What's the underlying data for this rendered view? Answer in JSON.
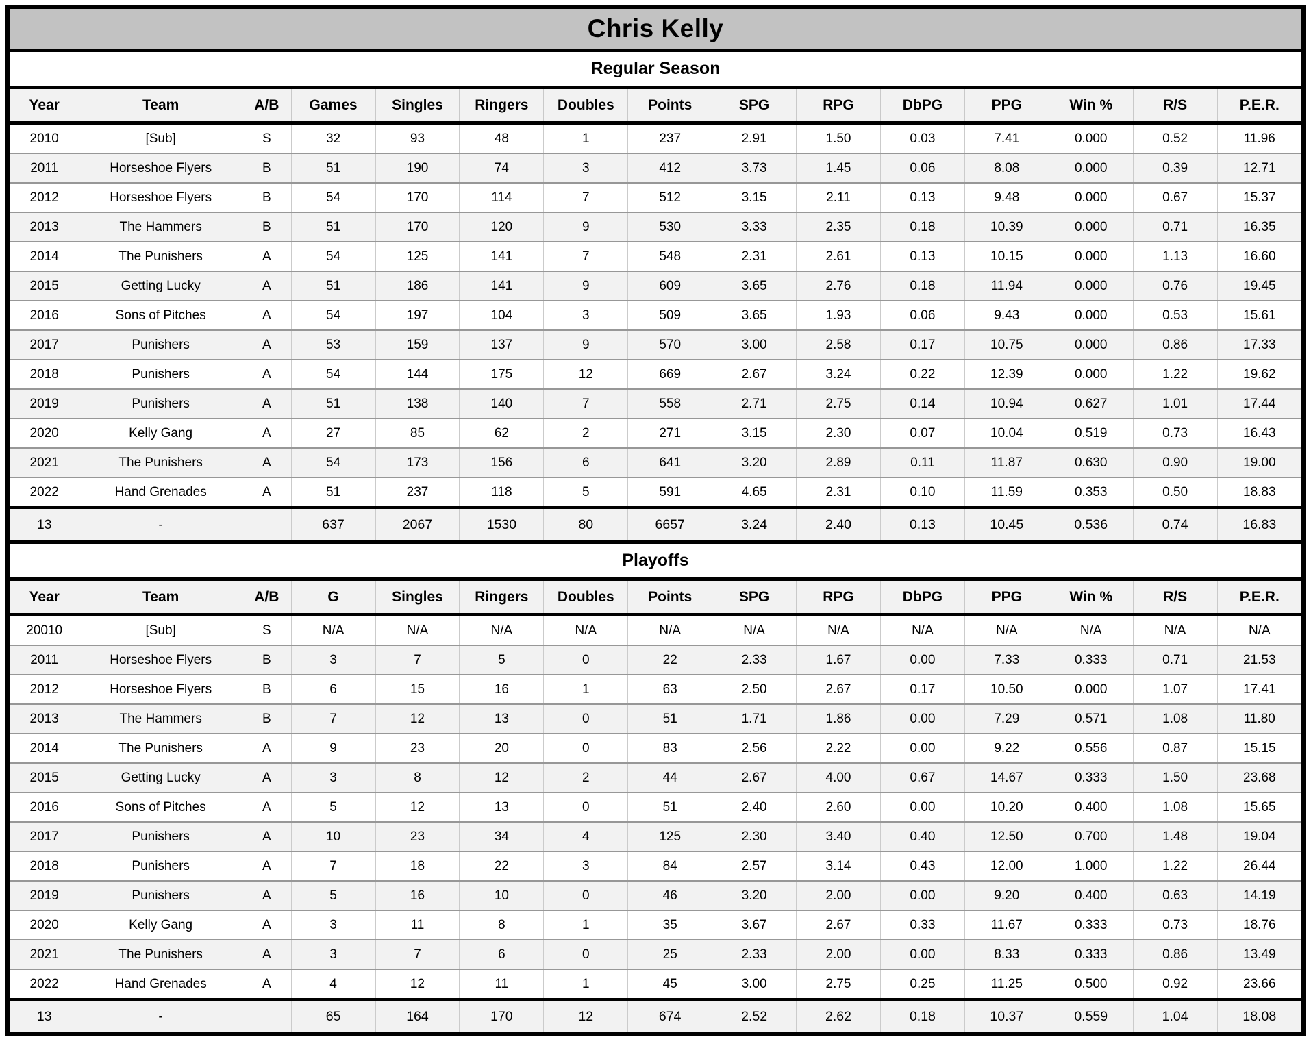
{
  "title": "Chris Kelly",
  "colors": {
    "title_bar_bg": "#c2c2c2",
    "header_row_bg": "#f2f2f2",
    "stripe_row_bg": "#f2f2f2",
    "border_black": "#000000",
    "grid_vertical": "#cbcbcb",
    "grid_horizontal": "#979797"
  },
  "sections": [
    {
      "label": "Regular Season",
      "columns": [
        "Year",
        "Team",
        "A/B",
        "Games",
        "Singles",
        "Ringers",
        "Doubles",
        "Points",
        "SPG",
        "RPG",
        "DbPG",
        "PPG",
        "Win %",
        "R/S",
        "P.E.R."
      ],
      "rows": [
        [
          "2010",
          "[Sub]",
          "S",
          "32",
          "93",
          "48",
          "1",
          "237",
          "2.91",
          "1.50",
          "0.03",
          "7.41",
          "0.000",
          "0.52",
          "11.96"
        ],
        [
          "2011",
          "Horseshoe Flyers",
          "B",
          "51",
          "190",
          "74",
          "3",
          "412",
          "3.73",
          "1.45",
          "0.06",
          "8.08",
          "0.000",
          "0.39",
          "12.71"
        ],
        [
          "2012",
          "Horseshoe Flyers",
          "B",
          "54",
          "170",
          "114",
          "7",
          "512",
          "3.15",
          "2.11",
          "0.13",
          "9.48",
          "0.000",
          "0.67",
          "15.37"
        ],
        [
          "2013",
          "The Hammers",
          "B",
          "51",
          "170",
          "120",
          "9",
          "530",
          "3.33",
          "2.35",
          "0.18",
          "10.39",
          "0.000",
          "0.71",
          "16.35"
        ],
        [
          "2014",
          "The Punishers",
          "A",
          "54",
          "125",
          "141",
          "7",
          "548",
          "2.31",
          "2.61",
          "0.13",
          "10.15",
          "0.000",
          "1.13",
          "16.60"
        ],
        [
          "2015",
          "Getting Lucky",
          "A",
          "51",
          "186",
          "141",
          "9",
          "609",
          "3.65",
          "2.76",
          "0.18",
          "11.94",
          "0.000",
          "0.76",
          "19.45"
        ],
        [
          "2016",
          "Sons of Pitches",
          "A",
          "54",
          "197",
          "104",
          "3",
          "509",
          "3.65",
          "1.93",
          "0.06",
          "9.43",
          "0.000",
          "0.53",
          "15.61"
        ],
        [
          "2017",
          "Punishers",
          "A",
          "53",
          "159",
          "137",
          "9",
          "570",
          "3.00",
          "2.58",
          "0.17",
          "10.75",
          "0.000",
          "0.86",
          "17.33"
        ],
        [
          "2018",
          "Punishers",
          "A",
          "54",
          "144",
          "175",
          "12",
          "669",
          "2.67",
          "3.24",
          "0.22",
          "12.39",
          "0.000",
          "1.22",
          "19.62"
        ],
        [
          "2019",
          "Punishers",
          "A",
          "51",
          "138",
          "140",
          "7",
          "558",
          "2.71",
          "2.75",
          "0.14",
          "10.94",
          "0.627",
          "1.01",
          "17.44"
        ],
        [
          "2020",
          "Kelly Gang",
          "A",
          "27",
          "85",
          "62",
          "2",
          "271",
          "3.15",
          "2.30",
          "0.07",
          "10.04",
          "0.519",
          "0.73",
          "16.43"
        ],
        [
          "2021",
          "The Punishers",
          "A",
          "54",
          "173",
          "156",
          "6",
          "641",
          "3.20",
          "2.89",
          "0.11",
          "11.87",
          "0.630",
          "0.90",
          "19.00"
        ],
        [
          "2022",
          "Hand Grenades",
          "A",
          "51",
          "237",
          "118",
          "5",
          "591",
          "4.65",
          "2.31",
          "0.10",
          "11.59",
          "0.353",
          "0.50",
          "18.83"
        ]
      ],
      "totals": [
        "13",
        "-",
        "",
        "637",
        "2067",
        "1530",
        "80",
        "6657",
        "3.24",
        "2.40",
        "0.13",
        "10.45",
        "0.536",
        "0.74",
        "16.83"
      ]
    },
    {
      "label": "Playoffs",
      "columns": [
        "Year",
        "Team",
        "A/B",
        "G",
        "Singles",
        "Ringers",
        "Doubles",
        "Points",
        "SPG",
        "RPG",
        "DbPG",
        "PPG",
        "Win %",
        "R/S",
        "P.E.R."
      ],
      "rows": [
        [
          "20010",
          "[Sub]",
          "S",
          "N/A",
          "N/A",
          "N/A",
          "N/A",
          "N/A",
          "N/A",
          "N/A",
          "N/A",
          "N/A",
          "N/A",
          "N/A",
          "N/A"
        ],
        [
          "2011",
          "Horseshoe Flyers",
          "B",
          "3",
          "7",
          "5",
          "0",
          "22",
          "2.33",
          "1.67",
          "0.00",
          "7.33",
          "0.333",
          "0.71",
          "21.53"
        ],
        [
          "2012",
          "Horseshoe Flyers",
          "B",
          "6",
          "15",
          "16",
          "1",
          "63",
          "2.50",
          "2.67",
          "0.17",
          "10.50",
          "0.000",
          "1.07",
          "17.41"
        ],
        [
          "2013",
          "The Hammers",
          "B",
          "7",
          "12",
          "13",
          "0",
          "51",
          "1.71",
          "1.86",
          "0.00",
          "7.29",
          "0.571",
          "1.08",
          "11.80"
        ],
        [
          "2014",
          "The Punishers",
          "A",
          "9",
          "23",
          "20",
          "0",
          "83",
          "2.56",
          "2.22",
          "0.00",
          "9.22",
          "0.556",
          "0.87",
          "15.15"
        ],
        [
          "2015",
          "Getting Lucky",
          "A",
          "3",
          "8",
          "12",
          "2",
          "44",
          "2.67",
          "4.00",
          "0.67",
          "14.67",
          "0.333",
          "1.50",
          "23.68"
        ],
        [
          "2016",
          "Sons of Pitches",
          "A",
          "5",
          "12",
          "13",
          "0",
          "51",
          "2.40",
          "2.60",
          "0.00",
          "10.20",
          "0.400",
          "1.08",
          "15.65"
        ],
        [
          "2017",
          "Punishers",
          "A",
          "10",
          "23",
          "34",
          "4",
          "125",
          "2.30",
          "3.40",
          "0.40",
          "12.50",
          "0.700",
          "1.48",
          "19.04"
        ],
        [
          "2018",
          "Punishers",
          "A",
          "7",
          "18",
          "22",
          "3",
          "84",
          "2.57",
          "3.14",
          "0.43",
          "12.00",
          "1.000",
          "1.22",
          "26.44"
        ],
        [
          "2019",
          "Punishers",
          "A",
          "5",
          "16",
          "10",
          "0",
          "46",
          "3.20",
          "2.00",
          "0.00",
          "9.20",
          "0.400",
          "0.63",
          "14.19"
        ],
        [
          "2020",
          "Kelly Gang",
          "A",
          "3",
          "11",
          "8",
          "1",
          "35",
          "3.67",
          "2.67",
          "0.33",
          "11.67",
          "0.333",
          "0.73",
          "18.76"
        ],
        [
          "2021",
          "The Punishers",
          "A",
          "3",
          "7",
          "6",
          "0",
          "25",
          "2.33",
          "2.00",
          "0.00",
          "8.33",
          "0.333",
          "0.86",
          "13.49"
        ],
        [
          "2022",
          "Hand Grenades",
          "A",
          "4",
          "12",
          "11",
          "1",
          "45",
          "3.00",
          "2.75",
          "0.25",
          "11.25",
          "0.500",
          "0.92",
          "23.66"
        ]
      ],
      "totals": [
        "13",
        "-",
        "",
        "65",
        "164",
        "170",
        "12",
        "674",
        "2.52",
        "2.62",
        "0.18",
        "10.37",
        "0.559",
        "1.04",
        "18.08"
      ]
    }
  ]
}
